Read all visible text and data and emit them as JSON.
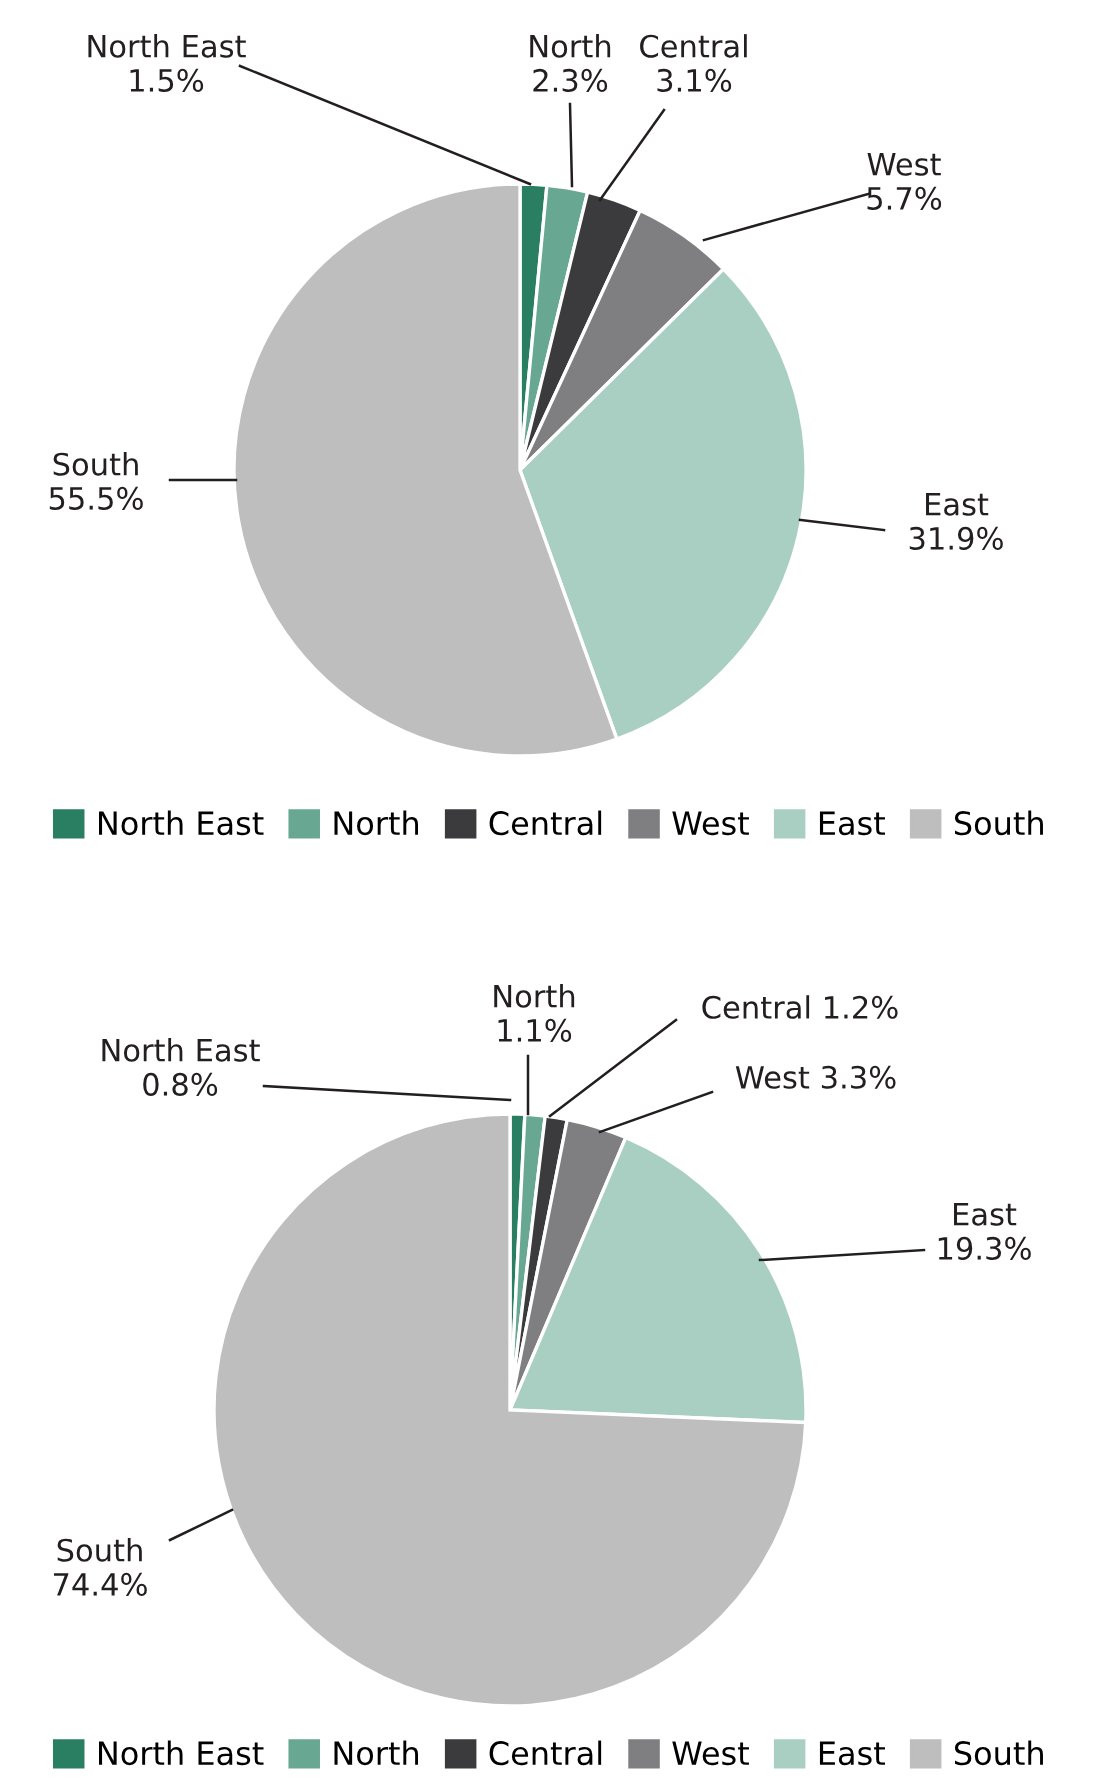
{
  "chart_data": [
    {
      "type": "pie",
      "categories": [
        "North East",
        "North",
        "Central",
        "West",
        "East",
        "South"
      ],
      "values": [
        1.5,
        2.3,
        3.1,
        5.7,
        31.9,
        55.5
      ],
      "value_labels": [
        "1.5%",
        "2.3%",
        "3.1%",
        "5.7%",
        "31.9%",
        "55.5%"
      ],
      "colors": [
        "#2a7f62",
        "#68a893",
        "#3b3b3d",
        "#7f7f82",
        "#a9cfc3",
        "#bebebf"
      ],
      "legend": "bottom"
    },
    {
      "type": "pie",
      "categories": [
        "North East",
        "North",
        "Central",
        "West",
        "East",
        "South"
      ],
      "values": [
        0.8,
        1.1,
        1.2,
        3.3,
        19.3,
        74.4
      ],
      "value_labels": [
        "0.8%",
        "1.1%",
        "1.2%",
        "3.3%",
        "19.3%",
        "74.4%"
      ],
      "colors": [
        "#2a7f62",
        "#68a893",
        "#3b3b3d",
        "#7f7f82",
        "#a9cfc3",
        "#bebebf"
      ],
      "legend": "bottom"
    }
  ]
}
